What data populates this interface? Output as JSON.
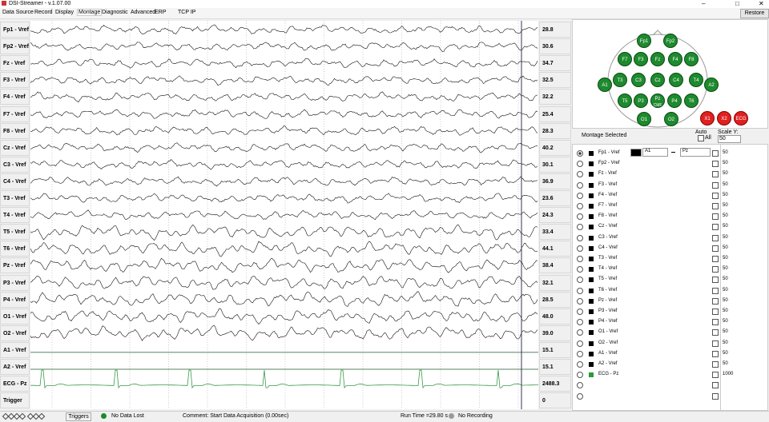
{
  "window": {
    "title": "DSI-Streamer - v.1.07.00",
    "restore": "Restore"
  },
  "menu": [
    "Data Source",
    "Record",
    "Display",
    "Montage",
    "Diagnostic",
    "Advanced",
    "ERP",
    "TCP IP"
  ],
  "channels": [
    {
      "label": "Fp1 - Vref",
      "value": "28.8"
    },
    {
      "label": "Fp2 - Vref",
      "value": "30.6"
    },
    {
      "label": "Fz - Vref",
      "value": "34.7"
    },
    {
      "label": "F3 - Vref",
      "value": "32.5"
    },
    {
      "label": "F4 - Vref",
      "value": "32.2"
    },
    {
      "label": "F7 - Vref",
      "value": "25.4"
    },
    {
      "label": "F8 - Vref",
      "value": "28.3"
    },
    {
      "label": "Cz - Vref",
      "value": "40.2"
    },
    {
      "label": "C3 - Vref",
      "value": "30.1"
    },
    {
      "label": "C4 - Vref",
      "value": "36.9"
    },
    {
      "label": "T3 - Vref",
      "value": "23.6"
    },
    {
      "label": "T4 - Vref",
      "value": "24.3"
    },
    {
      "label": "T5 - Vref",
      "value": "33.4"
    },
    {
      "label": "T6 - Vref",
      "value": "44.1"
    },
    {
      "label": "Pz - Vref",
      "value": "38.4"
    },
    {
      "label": "P3 - Vref",
      "value": "32.1"
    },
    {
      "label": "P4 - Vref",
      "value": "28.5"
    },
    {
      "label": "O1 - Vref",
      "value": "48.0"
    },
    {
      "label": "O2 - Vref",
      "value": "39.0"
    },
    {
      "label": "A1 - Vref",
      "value": "15.1"
    },
    {
      "label": "A2 - Vref",
      "value": "15.1"
    },
    {
      "label": "ECG - Pz",
      "value": "2488.3"
    },
    {
      "label": "Trigger",
      "value": "0"
    }
  ],
  "electrodes": [
    "Fp1",
    "Fp2",
    "F7",
    "F3",
    "Fz",
    "F4",
    "F8",
    "A1",
    "T3",
    "C3",
    "Cz",
    "C4",
    "T4",
    "A2",
    "T5",
    "P3",
    "Pz",
    "P4",
    "T6",
    "O1",
    "O2"
  ],
  "pz_sub": "CMF",
  "extra_electrodes": [
    "X1",
    "X2",
    "ECG"
  ],
  "montage": {
    "heading": "Montage Selected",
    "auto": "Auto",
    "all": "All",
    "scale_label": "Scale Y:",
    "scale": "50",
    "ref_a": "A1",
    "ref_b": "Pz",
    "rows": [
      {
        "label": "Fp1 - Vref",
        "scale": "50"
      },
      {
        "label": "Fp2 - Vref",
        "scale": "50"
      },
      {
        "label": "Fz - Vref",
        "scale": "50"
      },
      {
        "label": "F3 - Vref",
        "scale": "50"
      },
      {
        "label": "F4 - Vref",
        "scale": "50"
      },
      {
        "label": "F7 - Vref",
        "scale": "50"
      },
      {
        "label": "F8 - Vref",
        "scale": "50"
      },
      {
        "label": "Cz - Vref",
        "scale": "50"
      },
      {
        "label": "C3 - Vref",
        "scale": "50"
      },
      {
        "label": "C4 - Vref",
        "scale": "50"
      },
      {
        "label": "T3 - Vref",
        "scale": "50"
      },
      {
        "label": "T4 - Vref",
        "scale": "50"
      },
      {
        "label": "T5 - Vref",
        "scale": "50"
      },
      {
        "label": "T6 - Vref",
        "scale": "50"
      },
      {
        "label": "Pz - Vref",
        "scale": "50"
      },
      {
        "label": "P3 - Vref",
        "scale": "50"
      },
      {
        "label": "P4 - Vref",
        "scale": "50"
      },
      {
        "label": "O1 - Vref",
        "scale": "50"
      },
      {
        "label": "O2 - Vref",
        "scale": "50"
      },
      {
        "label": "A1 - Vref",
        "scale": "50"
      },
      {
        "label": "A2 - Vref",
        "scale": "50"
      },
      {
        "label": "ECG - Pz",
        "scale": "1000"
      }
    ]
  },
  "status": {
    "triggers": "Triggers",
    "data_lost": "No Data Lost",
    "comment": "Comment: Start Data Acquisition (0.00sec)",
    "run_time": "Run Time =29.80 s",
    "recording": "No Recording"
  }
}
